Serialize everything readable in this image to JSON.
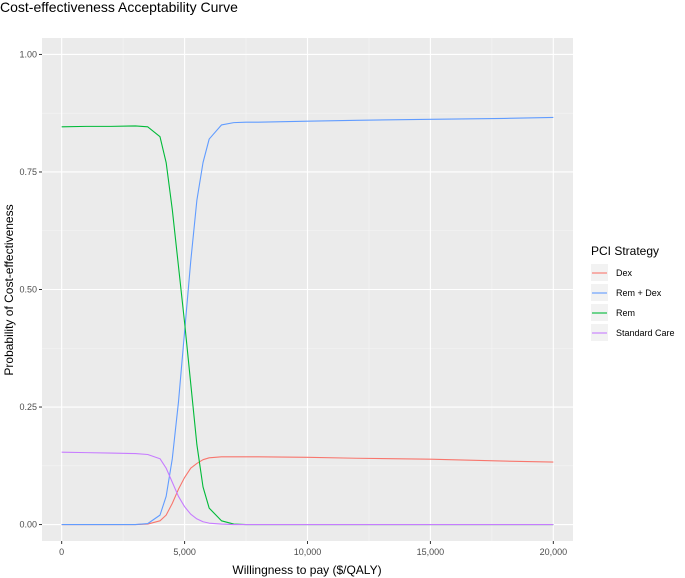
{
  "chart_data": {
    "type": "line",
    "title": "Cost-effectiveness Acceptability Curve",
    "xlabel": "Willingness to pay ($/QALY)",
    "ylabel": "Probability of Cost-effectiveness",
    "xlim": [
      -800,
      20800
    ],
    "ylim": [
      -0.035,
      1.035
    ],
    "xticks": [
      0,
      5000,
      10000,
      15000,
      20000
    ],
    "xtick_labels": [
      "0",
      "5,000",
      "10,000",
      "15,000",
      "20,000"
    ],
    "yticks": [
      0,
      0.25,
      0.5,
      0.75,
      1.0
    ],
    "ytick_labels": [
      "0.00",
      "0.25",
      "0.50",
      "0.75",
      "1.00"
    ],
    "grid": true,
    "legend_title": "PCI Strategy",
    "legend_position": "right",
    "x": [
      0,
      1000,
      2000,
      3000,
      3500,
      4000,
      4250,
      4500,
      4750,
      5000,
      5250,
      5500,
      5750,
      6000,
      6500,
      7000,
      7500,
      8000,
      10000,
      12000,
      15000,
      18000,
      20000
    ],
    "series": [
      {
        "name": "Dex",
        "color": "#F8766D",
        "values": [
          0,
          0,
          0,
          0,
          0.001,
          0.008,
          0.02,
          0.045,
          0.075,
          0.1,
          0.12,
          0.13,
          0.138,
          0.142,
          0.144,
          0.144,
          0.144,
          0.144,
          0.143,
          0.141,
          0.139,
          0.135,
          0.133
        ]
      },
      {
        "name": "Rem + Dex",
        "color": "#619CFF",
        "values": [
          0,
          0,
          0,
          0,
          0.002,
          0.02,
          0.06,
          0.14,
          0.26,
          0.41,
          0.56,
          0.69,
          0.77,
          0.82,
          0.85,
          0.855,
          0.856,
          0.856,
          0.858,
          0.86,
          0.862,
          0.864,
          0.866
        ]
      },
      {
        "name": "Rem",
        "color": "#00BA38",
        "values": [
          0.846,
          0.847,
          0.847,
          0.848,
          0.846,
          0.825,
          0.77,
          0.67,
          0.55,
          0.43,
          0.3,
          0.17,
          0.08,
          0.035,
          0.008,
          0.001,
          0,
          0,
          0,
          0,
          0,
          0,
          0
        ]
      },
      {
        "name": "Standard Care",
        "color": "#C77CFF",
        "values": [
          0.154,
          0.153,
          0.152,
          0.151,
          0.149,
          0.14,
          0.12,
          0.09,
          0.06,
          0.038,
          0.022,
          0.012,
          0.006,
          0.003,
          0.001,
          0,
          0,
          0,
          0,
          0,
          0,
          0,
          0
        ]
      }
    ]
  }
}
